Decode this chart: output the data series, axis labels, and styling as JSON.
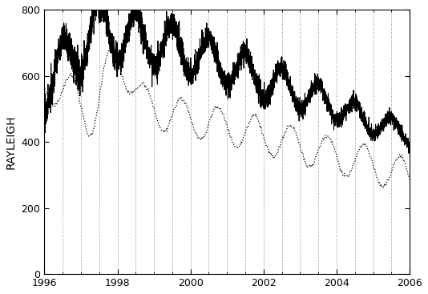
{
  "title": "",
  "ylabel": "RAYLEIGH",
  "xlabel": "",
  "xlim": [
    1996.0,
    2006.0
  ],
  "ylim": [
    0,
    800
  ],
  "yticks": [
    0,
    200,
    400,
    600,
    800
  ],
  "xticks": [
    1996,
    1998,
    2000,
    2002,
    2004,
    2006
  ],
  "background_color": "#ffffff",
  "line_color": "#000000",
  "grid_color": "#aaaaaa",
  "ylabel_fontsize": 10,
  "tick_fontsize": 9,
  "seed": 42
}
